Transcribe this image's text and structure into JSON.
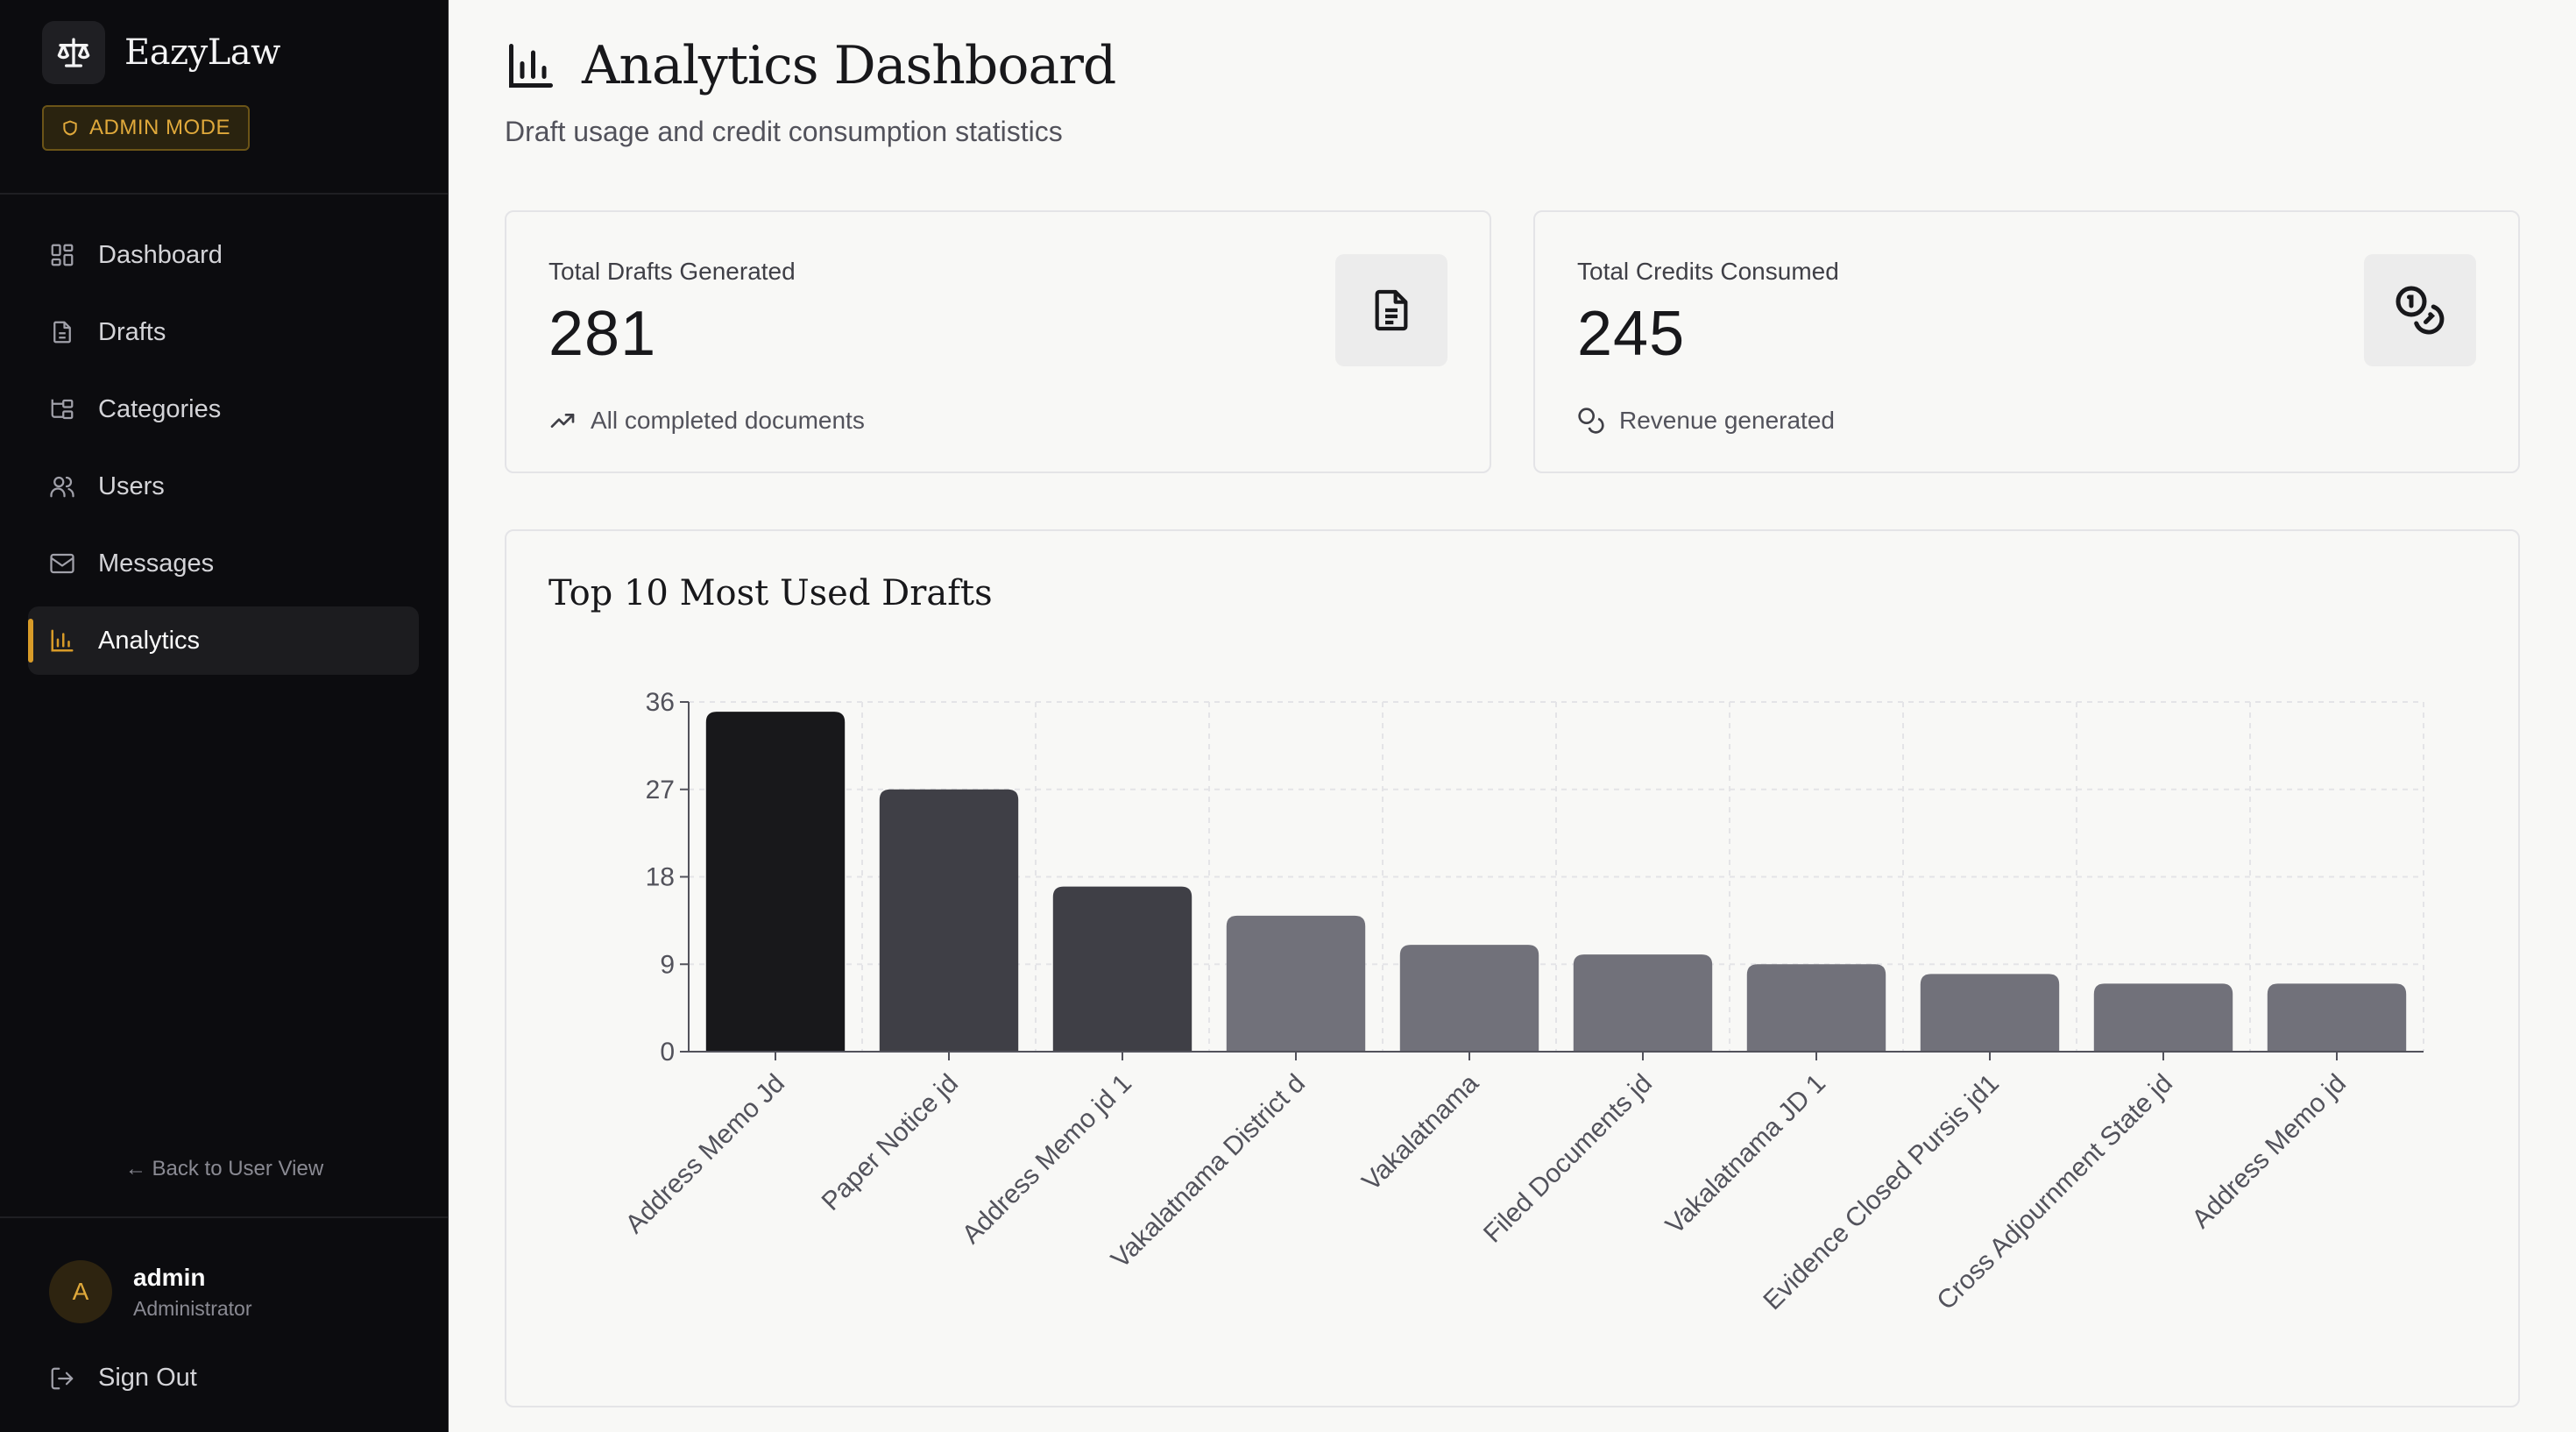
{
  "app": {
    "name": "EazyLaw",
    "mode_badge": "ADMIN MODE"
  },
  "sidebar": {
    "items": [
      {
        "label": "Dashboard",
        "icon": "dashboard-grid-icon"
      },
      {
        "label": "Drafts",
        "icon": "document-icon"
      },
      {
        "label": "Categories",
        "icon": "folder-tree-icon"
      },
      {
        "label": "Users",
        "icon": "users-icon"
      },
      {
        "label": "Messages",
        "icon": "mail-icon"
      },
      {
        "label": "Analytics",
        "icon": "bar-chart-icon",
        "active": true
      }
    ],
    "back_link": "← Back to User View",
    "user": {
      "initial": "A",
      "name": "admin",
      "role": "Administrator"
    },
    "sign_out": "Sign Out"
  },
  "header": {
    "title": "Analytics Dashboard",
    "subtitle": "Draft usage and credit consumption statistics"
  },
  "stats": [
    {
      "label": "Total Drafts Generated",
      "value": "281",
      "footnote": "All completed documents",
      "icon": "file-text-icon",
      "foot_icon": "trending-up-icon"
    },
    {
      "label": "Total Credits Consumed",
      "value": "245",
      "footnote": "Revenue generated",
      "icon": "coins-icon",
      "foot_icon": "coins-icon"
    }
  ],
  "colors": {
    "accent": "#d89b28",
    "sidebar_bg": "#0c0c0f",
    "bar_dark": "#18181b",
    "bar_mid": "#3f3f46",
    "bar_light": "#71717a"
  },
  "chart_data": {
    "type": "bar",
    "title": "Top 10 Most Used Drafts",
    "categories": [
      "Address Memo Jd",
      "Paper Notice jd",
      "Address Memo jd 1",
      "Vakalatnama District d",
      "Vakalatnama",
      "Filed Documents jd",
      "Vakalatnama JD 1",
      "Evidence Closed Pursis jd1",
      "Cross Adjournment State jd",
      "Address Memo jd"
    ],
    "values": [
      35,
      27,
      17,
      14,
      11,
      10,
      9,
      8,
      7,
      7
    ],
    "ylim": [
      0,
      36
    ],
    "yticks": [
      0,
      9,
      18,
      27,
      36
    ],
    "xlabel": "",
    "ylabel": "",
    "grid": true,
    "bar_colors": [
      "#18181b",
      "#3f3f46",
      "#3f3f46",
      "#71717a",
      "#71717a",
      "#71717a",
      "#71717a",
      "#71717a",
      "#71717a",
      "#71717a"
    ]
  }
}
